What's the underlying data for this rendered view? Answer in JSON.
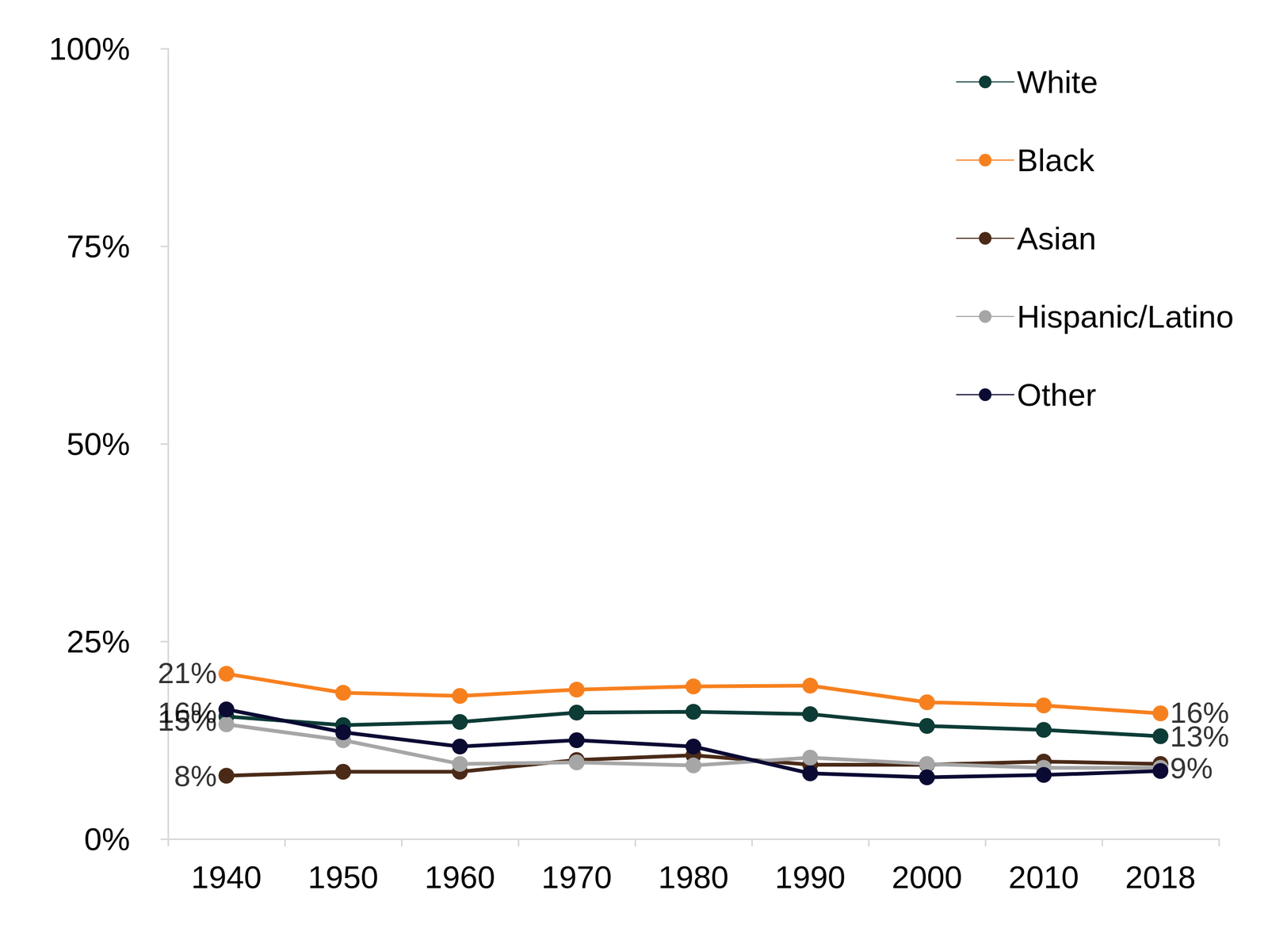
{
  "chart_data": {
    "type": "line",
    "categories": [
      "1940",
      "1950",
      "1960",
      "1970",
      "1980",
      "1990",
      "2000",
      "2010",
      "2018"
    ],
    "series": [
      {
        "name": "White",
        "color": "#0d3b36",
        "values": [
          15.5,
          14.4,
          14.8,
          16.0,
          16.1,
          15.8,
          14.3,
          13.8,
          13.0
        ]
      },
      {
        "name": "Black",
        "color": "#f7801e",
        "values": [
          20.9,
          18.5,
          18.1,
          18.9,
          19.3,
          19.4,
          17.3,
          16.9,
          15.9
        ]
      },
      {
        "name": "Asian",
        "color": "#4a2a17",
        "values": [
          8.0,
          8.5,
          8.5,
          10.0,
          10.6,
          9.4,
          9.4,
          9.8,
          9.5
        ]
      },
      {
        "name": "Hispanic/Latino",
        "color": "#a6a6a6",
        "values": [
          14.5,
          12.5,
          9.5,
          9.7,
          9.3,
          10.3,
          9.5,
          9.0,
          9.0
        ]
      },
      {
        "name": "Other",
        "color": "#0a0a33",
        "values": [
          16.4,
          13.5,
          11.7,
          12.5,
          11.7,
          8.3,
          7.8,
          8.1,
          8.6
        ]
      }
    ],
    "annotations": [
      {
        "text": "21%",
        "x": "1940",
        "y": 21
      },
      {
        "text": "16%",
        "x": "1940",
        "y": 16
      },
      {
        "text": "15%",
        "x": "1940",
        "y": 15
      },
      {
        "text": "8%",
        "x": "1940",
        "y": 8
      },
      {
        "text": "16%",
        "x": "2018",
        "y": 16
      },
      {
        "text": "13%",
        "x": "2018",
        "y": 13
      },
      {
        "text": "9%",
        "x": "2018",
        "y": 9
      }
    ],
    "ylim": [
      0,
      100
    ],
    "yticks": [
      {
        "value": 0,
        "label": "0%"
      },
      {
        "value": 25,
        "label": "25%"
      },
      {
        "value": 50,
        "label": "50%"
      },
      {
        "value": 75,
        "label": "75%"
      },
      {
        "value": 100,
        "label": "100%"
      }
    ],
    "grid": false,
    "legend": "top-right",
    "marker": "circle",
    "line_style": "solid"
  }
}
